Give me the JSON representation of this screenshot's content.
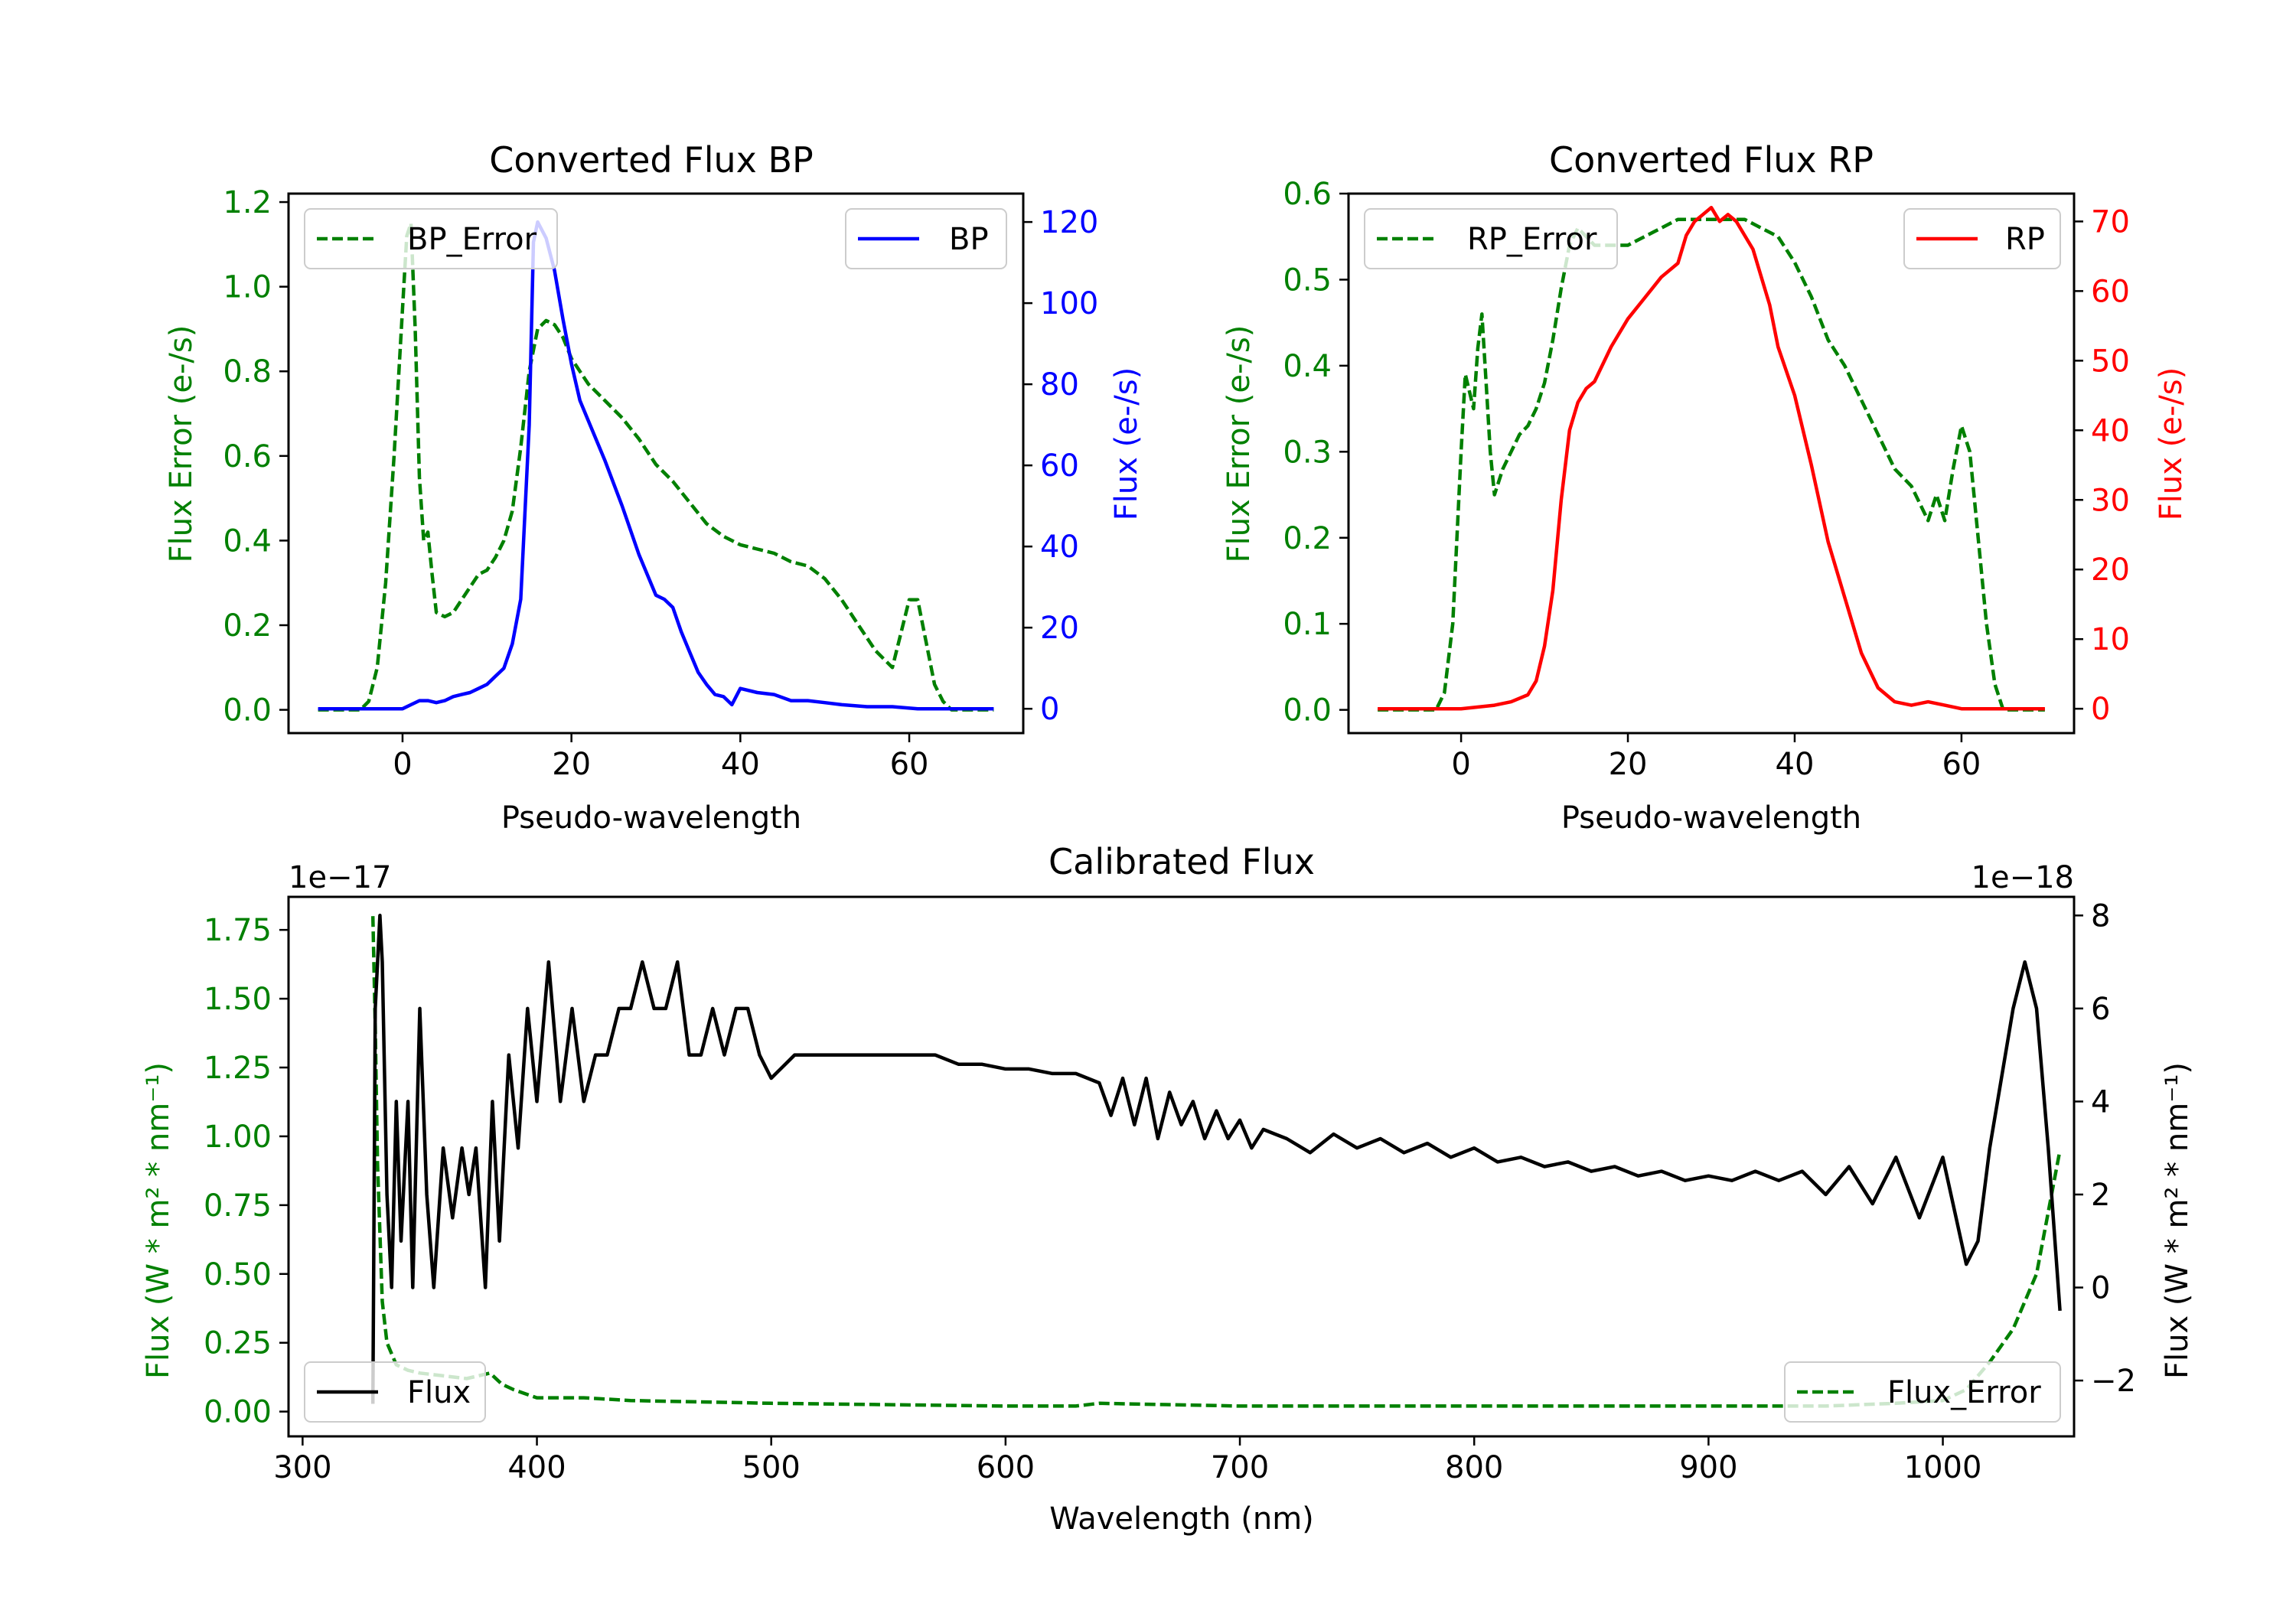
{
  "chart_data": [
    {
      "id": "bp",
      "type": "line",
      "title": "Converted Flux BP",
      "xlabel": "Pseudo-wavelength",
      "ylabel_left": "Flux Error (e-/s)",
      "ylabel_right": "Flux (e-/s)",
      "xlim": [
        -13.5,
        73.5
      ],
      "ylim_left": [
        -0.055,
        1.22
      ],
      "ylim_right": [
        -6,
        127
      ],
      "xticks": [
        0,
        20,
        40,
        60
      ],
      "yticks_left": [
        0.0,
        0.2,
        0.4,
        0.6,
        0.8,
        1.0,
        1.2
      ],
      "yticks_right": [
        0,
        20,
        40,
        60,
        80,
        100,
        120
      ],
      "left_color": "#008000",
      "right_color": "#0000ff",
      "legend_left": "BP_Error",
      "legend_right": "BP",
      "series": [
        {
          "name": "BP_Error",
          "axis": "left",
          "style": "dashed",
          "color": "#008000",
          "x": [
            -10,
            -5,
            -4,
            -3,
            -2,
            -1,
            0,
            0.5,
            1,
            1.5,
            2,
            2.5,
            3,
            3.5,
            4,
            5,
            6,
            7,
            8,
            9,
            10,
            11,
            12,
            13,
            14,
            15,
            16,
            17,
            18,
            19,
            20,
            22,
            24,
            26,
            28,
            30,
            32,
            34,
            36,
            38,
            40,
            42,
            44,
            46,
            48,
            50,
            52,
            54,
            56,
            58,
            59,
            60,
            61,
            62,
            63,
            64,
            65,
            66,
            67,
            68,
            69,
            70
          ],
          "y": [
            0.0,
            0.0,
            0.02,
            0.1,
            0.3,
            0.6,
            0.95,
            1.12,
            1.15,
            0.9,
            0.55,
            0.4,
            0.42,
            0.32,
            0.23,
            0.22,
            0.23,
            0.26,
            0.29,
            0.32,
            0.33,
            0.36,
            0.4,
            0.47,
            0.62,
            0.8,
            0.9,
            0.92,
            0.91,
            0.88,
            0.83,
            0.77,
            0.73,
            0.69,
            0.64,
            0.58,
            0.54,
            0.49,
            0.44,
            0.41,
            0.39,
            0.38,
            0.37,
            0.35,
            0.34,
            0.31,
            0.26,
            0.2,
            0.14,
            0.1,
            0.18,
            0.26,
            0.26,
            0.16,
            0.06,
            0.02,
            0.0,
            0.0,
            0.0,
            0.0,
            0.0,
            0.0
          ]
        },
        {
          "name": "BP",
          "axis": "right",
          "style": "solid",
          "color": "#0000ff",
          "x": [
            -10,
            -5,
            -2,
            0,
            1,
            2,
            3,
            4,
            5,
            6,
            7,
            8,
            9,
            10,
            11,
            12,
            13,
            14,
            15,
            15.5,
            16,
            17,
            18,
            19,
            20,
            21,
            22,
            24,
            26,
            28,
            30,
            31,
            32,
            33,
            34,
            35,
            36,
            37,
            38,
            39,
            40,
            42,
            44,
            46,
            48,
            50,
            52,
            55,
            58,
            61,
            64,
            67,
            70
          ],
          "y": [
            0,
            0,
            0,
            0,
            1,
            2,
            2,
            1.5,
            2,
            3,
            3.5,
            4,
            5,
            6,
            8,
            10,
            16,
            27,
            70,
            115,
            120,
            116,
            108,
            96,
            85,
            76,
            71,
            61,
            50,
            38,
            28,
            27,
            25,
            19,
            14,
            9,
            6,
            3.5,
            3,
            1,
            5,
            4,
            3.5,
            2,
            2,
            1.5,
            1,
            0.5,
            0.5,
            0,
            0,
            0,
            0
          ]
        }
      ]
    },
    {
      "id": "rp",
      "type": "line",
      "title": "Converted Flux RP",
      "xlabel": "Pseudo-wavelength",
      "ylabel_left": "Flux Error (e-/s)",
      "ylabel_right": "Flux (e-/s)",
      "xlim": [
        -13.5,
        73.5
      ],
      "ylim_left": [
        -0.027,
        0.6
      ],
      "ylim_right": [
        -3.5,
        74
      ],
      "xticks": [
        0,
        20,
        40,
        60
      ],
      "yticks_left": [
        0.0,
        0.1,
        0.2,
        0.3,
        0.4,
        0.5,
        0.6
      ],
      "yticks_right": [
        0,
        10,
        20,
        30,
        40,
        50,
        60,
        70
      ],
      "left_color": "#008000",
      "right_color": "#ff0000",
      "legend_left": "RP_Error",
      "legend_right": "RP",
      "series": [
        {
          "name": "RP_Error",
          "axis": "left",
          "style": "dashed",
          "color": "#008000",
          "x": [
            -10,
            -3,
            -2,
            -1,
            0,
            0.5,
            1,
            1.5,
            2,
            2.5,
            3,
            3.5,
            4,
            5,
            6,
            7,
            8,
            9,
            10,
            11,
            12,
            13,
            14,
            15,
            16,
            18,
            20,
            22,
            24,
            26,
            28,
            30,
            32,
            34,
            36,
            38,
            40,
            42,
            44,
            46,
            48,
            50,
            52,
            54,
            55,
            56,
            57,
            58,
            59,
            60,
            61,
            62,
            63,
            64,
            65,
            66,
            70
          ],
          "y": [
            0,
            0,
            0.02,
            0.1,
            0.3,
            0.39,
            0.37,
            0.35,
            0.42,
            0.46,
            0.38,
            0.3,
            0.25,
            0.28,
            0.3,
            0.32,
            0.33,
            0.35,
            0.38,
            0.43,
            0.49,
            0.54,
            0.56,
            0.55,
            0.54,
            0.54,
            0.54,
            0.55,
            0.56,
            0.57,
            0.57,
            0.57,
            0.57,
            0.57,
            0.56,
            0.55,
            0.52,
            0.48,
            0.43,
            0.4,
            0.36,
            0.32,
            0.28,
            0.26,
            0.24,
            0.22,
            0.25,
            0.22,
            0.28,
            0.33,
            0.3,
            0.2,
            0.1,
            0.03,
            0.0,
            0.0,
            0.0
          ]
        },
        {
          "name": "RP",
          "axis": "right",
          "style": "solid",
          "color": "#ff0000",
          "x": [
            -10,
            0,
            4,
            6,
            8,
            9,
            10,
            11,
            12,
            13,
            14,
            15,
            16,
            18,
            20,
            22,
            24,
            26,
            27,
            28,
            29,
            30,
            31,
            32,
            33,
            34,
            35,
            36,
            37,
            38,
            40,
            42,
            44,
            46,
            48,
            50,
            52,
            54,
            56,
            58,
            60,
            62,
            66,
            70
          ],
          "y": [
            0,
            0,
            0.5,
            1,
            2,
            4,
            9,
            17,
            30,
            40,
            44,
            46,
            47,
            52,
            56,
            59,
            62,
            64,
            68,
            70,
            71,
            72,
            70,
            71,
            70,
            68,
            66,
            62,
            58,
            52,
            45,
            35,
            24,
            16,
            8,
            3,
            1,
            0.5,
            1,
            0.5,
            0,
            0,
            0,
            0
          ]
        }
      ]
    },
    {
      "id": "cal",
      "type": "line",
      "title": "Calibrated Flux",
      "xlabel": "Wavelength (nm)",
      "ylabel_left": "Flux (W * m² * nm⁻¹)",
      "ylabel_right": "Flux (W * m² * nm⁻¹)",
      "offset_left": "1e−17",
      "offset_right": "1e−18",
      "xlim": [
        294,
        1056
      ],
      "ylim_left": [
        -0.09,
        1.87
      ],
      "ylim_right": [
        -3.2,
        8.4
      ],
      "xticks": [
        300,
        400,
        500,
        600,
        700,
        800,
        900,
        1000
      ],
      "yticks_left": [
        0.0,
        0.25,
        0.5,
        0.75,
        1.0,
        1.25,
        1.5,
        1.75
      ],
      "yticks_right": [
        -2,
        0,
        2,
        4,
        6,
        8
      ],
      "left_color": "#008000",
      "right_color": "#000000",
      "legend_left": "Flux",
      "legend_right": "Flux_Error",
      "series": [
        {
          "name": "Flux_Error",
          "axis": "left",
          "style": "dashed",
          "color": "#008000",
          "x": [
            330,
            331,
            332,
            334,
            336,
            340,
            345,
            350,
            360,
            370,
            380,
            385,
            390,
            400,
            420,
            440,
            500,
            600,
            630,
            640,
            700,
            800,
            900,
            950,
            980,
            1000,
            1010,
            1020,
            1030,
            1040,
            1050
          ],
          "y": [
            1.8,
            1.4,
            0.9,
            0.4,
            0.25,
            0.17,
            0.15,
            0.14,
            0.13,
            0.12,
            0.14,
            0.1,
            0.08,
            0.05,
            0.05,
            0.04,
            0.03,
            0.02,
            0.02,
            0.03,
            0.02,
            0.02,
            0.02,
            0.02,
            0.03,
            0.04,
            0.08,
            0.18,
            0.3,
            0.5,
            0.95
          ]
        },
        {
          "name": "Flux",
          "axis": "right",
          "style": "solid",
          "color": "#000000",
          "x": [
            330,
            331,
            333,
            334,
            336,
            338,
            340,
            342,
            345,
            347,
            350,
            353,
            356,
            360,
            364,
            368,
            371,
            374,
            378,
            381,
            384,
            388,
            392,
            396,
            400,
            405,
            410,
            415,
            420,
            425,
            430,
            435,
            440,
            445,
            450,
            455,
            460,
            465,
            470,
            475,
            480,
            485,
            490,
            495,
            500,
            510,
            520,
            530,
            540,
            550,
            560,
            570,
            580,
            590,
            600,
            610,
            620,
            630,
            640,
            645,
            650,
            655,
            660,
            665,
            670,
            675,
            680,
            685,
            690,
            695,
            700,
            705,
            710,
            715,
            720,
            730,
            740,
            750,
            760,
            770,
            780,
            790,
            800,
            810,
            820,
            830,
            840,
            850,
            860,
            870,
            880,
            890,
            900,
            910,
            920,
            930,
            940,
            950,
            960,
            970,
            980,
            990,
            1000,
            1010,
            1015,
            1020,
            1030,
            1035,
            1040,
            1045,
            1050
          ],
          "y": [
            -2.5,
            6,
            8,
            7,
            2,
            0,
            4,
            1,
            4,
            0,
            6,
            2,
            0,
            3,
            1.5,
            3,
            2,
            3,
            0,
            4,
            1,
            5,
            3,
            6,
            4,
            7,
            4,
            6,
            4,
            5,
            5,
            6,
            6,
            7,
            6,
            6,
            7,
            5,
            5,
            6,
            5,
            6,
            6,
            5,
            4.5,
            5,
            5,
            5,
            5,
            5,
            5,
            5,
            4.8,
            4.8,
            4.7,
            4.7,
            4.6,
            4.6,
            4.4,
            3.7,
            4.5,
            3.5,
            4.5,
            3.2,
            4.2,
            3.5,
            4,
            3.2,
            3.8,
            3.2,
            3.6,
            3,
            3.4,
            3.3,
            3.2,
            2.9,
            3.3,
            3,
            3.2,
            2.9,
            3.1,
            2.8,
            3,
            2.7,
            2.8,
            2.6,
            2.7,
            2.5,
            2.6,
            2.4,
            2.5,
            2.3,
            2.4,
            2.3,
            2.5,
            2.3,
            2.5,
            2,
            2.6,
            1.8,
            2.8,
            1.5,
            2.8,
            0.5,
            1,
            3,
            6,
            7,
            6,
            3,
            -0.5
          ]
        }
      ]
    }
  ]
}
